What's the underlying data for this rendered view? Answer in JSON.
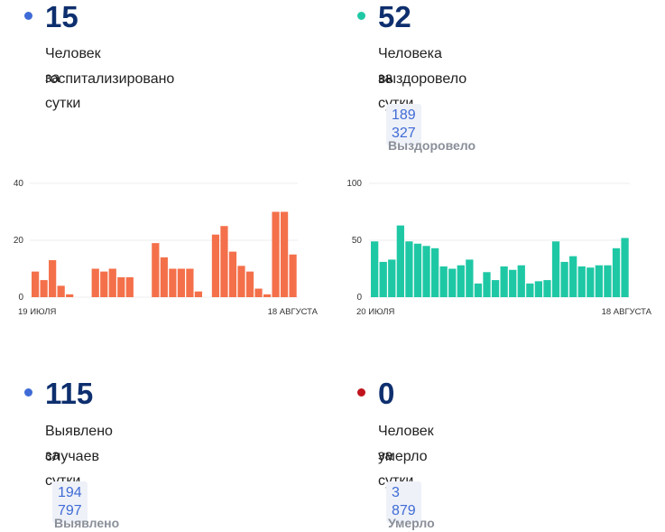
{
  "cards": {
    "hospitalized": {
      "value": "15",
      "line1": "Человек госпитализировано",
      "line2": "за сутки",
      "dot_color": "#3f6bd6"
    },
    "recovered": {
      "value": "52",
      "line1": "Человека выздоровело",
      "line2": "за сутки",
      "total": "189 327",
      "total_label": "Выздоровело",
      "dot_color": "#1fc8a5"
    },
    "detected": {
      "value": "115",
      "line1": "Выявлено случаев",
      "line2": "за сутки",
      "total": "194 797",
      "total_label": "Выявлено",
      "dot_color": "#3f6bd6"
    },
    "deaths": {
      "value": "0",
      "line1": "Человек умерло",
      "line2": "за сутки",
      "total": "3 879",
      "total_label": "Умерло",
      "dot_color": "#c0141e"
    }
  },
  "chart_data": [
    {
      "type": "bar",
      "name": "hospitalized",
      "color": "#f4704a",
      "ylim": [
        0,
        40
      ],
      "yticks": [
        "0",
        "20",
        "40"
      ],
      "x_start_label": "19 ИЮЛЯ",
      "x_end_label": "18 АВГУСТА",
      "values": [
        9,
        6,
        13,
        4,
        1,
        0,
        0,
        10,
        9,
        10,
        7,
        7,
        0,
        0,
        19,
        14,
        10,
        10,
        10,
        2,
        0,
        22,
        25,
        16,
        11,
        9,
        3,
        1,
        30,
        30,
        15
      ]
    },
    {
      "type": "bar",
      "name": "recovered",
      "color": "#1fc8a5",
      "ylim": [
        0,
        100
      ],
      "yticks": [
        "0",
        "50",
        "100"
      ],
      "x_start_label": "20 ИЮЛЯ",
      "x_end_label": "18 АВГУСТА",
      "values": [
        49,
        31,
        33,
        63,
        49,
        47,
        45,
        43,
        27,
        25,
        28,
        33,
        12,
        22,
        15,
        27,
        24,
        28,
        12,
        14,
        15,
        49,
        31,
        36,
        27,
        26,
        28,
        28,
        43,
        52
      ]
    }
  ]
}
